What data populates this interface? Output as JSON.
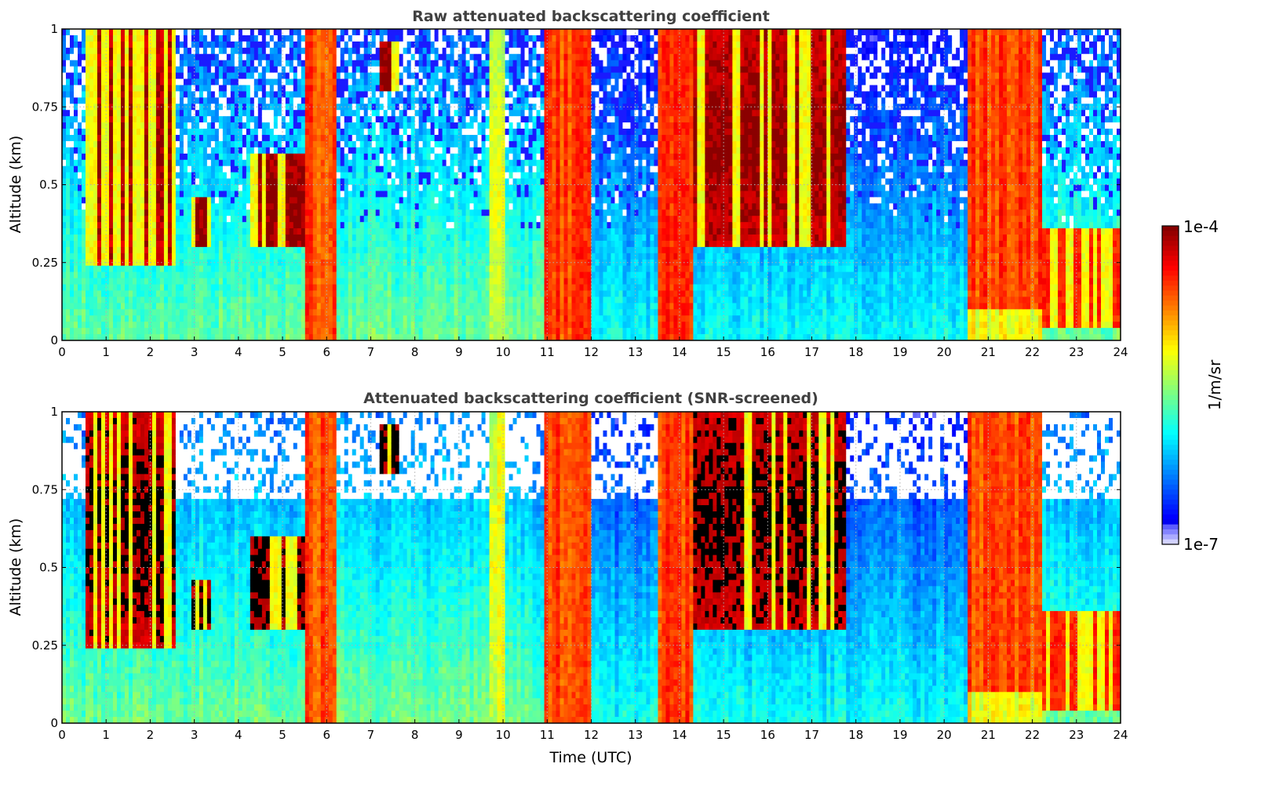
{
  "chart_data": [
    {
      "type": "heatmap",
      "title": "Raw attenuated backscattering coefficient",
      "xlabel": "",
      "ylabel": "Altitude (km)",
      "xlim": [
        0,
        24
      ],
      "ylim": [
        0,
        1
      ],
      "xticks": [
        "0",
        "1",
        "2",
        "3",
        "4",
        "5",
        "6",
        "7",
        "8",
        "9",
        "10",
        "11",
        "12",
        "13",
        "14",
        "15",
        "16",
        "17",
        "18",
        "19",
        "20",
        "21",
        "22",
        "23",
        "24"
      ],
      "yticks": [
        "0",
        "0.25",
        "0.5",
        "0.75",
        "1"
      ],
      "ytick_values": [
        0,
        0.25,
        0.5,
        0.75,
        1
      ],
      "grid": true,
      "screened": false,
      "features": [
        {
          "name": "boundary-layer-haze",
          "t_start": 0,
          "t_end": 24,
          "alt_top": 0.25,
          "level": "low"
        },
        {
          "name": "cloud-layer",
          "t_start": 0.5,
          "t_end": 2.6,
          "alt_bottom": 0.25,
          "alt_top": 1.0,
          "level": "high"
        },
        {
          "name": "cloud-layer",
          "t_start": 2.9,
          "t_end": 3.4,
          "alt_bottom": 0.3,
          "alt_top": 0.45,
          "level": "high"
        },
        {
          "name": "cloud-layer",
          "t_start": 4.3,
          "t_end": 5.5,
          "alt_bottom": 0.3,
          "alt_top": 0.6,
          "level": "high"
        },
        {
          "name": "fog-column",
          "t_start": 5.5,
          "t_end": 6.2,
          "alt_bottom": 0,
          "alt_top": 1.0,
          "level": "very-high"
        },
        {
          "name": "cloud-layer",
          "t_start": 7.2,
          "t_end": 7.6,
          "alt_bottom": 0.8,
          "alt_top": 0.95,
          "level": "high"
        },
        {
          "name": "precipitation",
          "t_start": 9.7,
          "t_end": 10.0,
          "alt_bottom": 0,
          "alt_top": 1.0,
          "level": "medium"
        },
        {
          "name": "fog-column",
          "t_start": 10.9,
          "t_end": 12.0,
          "alt_bottom": 0,
          "alt_top": 1.0,
          "level": "very-high"
        },
        {
          "name": "fog-column",
          "t_start": 13.5,
          "t_end": 14.3,
          "alt_bottom": 0,
          "alt_top": 1.0,
          "level": "very-high"
        },
        {
          "name": "cloud-layer",
          "t_start": 14.3,
          "t_end": 17.8,
          "alt_bottom": 0.3,
          "alt_top": 1.0,
          "level": "high"
        },
        {
          "name": "fog-column",
          "t_start": 20.5,
          "t_end": 22.2,
          "alt_bottom": 0,
          "alt_top": 1.0,
          "level": "very-high"
        },
        {
          "name": "cloud-layer",
          "t_start": 22.2,
          "t_end": 24,
          "alt_bottom": 0.05,
          "alt_top": 0.35,
          "level": "very-high"
        }
      ]
    },
    {
      "type": "heatmap",
      "title": "Attenuated backscattering coefficient (SNR-screened)",
      "xlabel": "Time (UTC)",
      "ylabel": "Altitude (km)",
      "xlim": [
        0,
        24
      ],
      "ylim": [
        0,
        1
      ],
      "xticks": [
        "0",
        "1",
        "2",
        "3",
        "4",
        "5",
        "6",
        "7",
        "8",
        "9",
        "10",
        "11",
        "12",
        "13",
        "14",
        "15",
        "16",
        "17",
        "18",
        "19",
        "20",
        "21",
        "22",
        "23",
        "24"
      ],
      "yticks": [
        "0",
        "0.25",
        "0.5",
        "0.75",
        "1"
      ],
      "ytick_values": [
        0,
        0.25,
        0.5,
        0.75,
        1
      ],
      "grid": true,
      "screened": true
    }
  ],
  "colorbar": {
    "label": "1/m/sr",
    "min_label": "1e-7",
    "max_label": "1e-4",
    "min": 1e-07,
    "max": 0.0001,
    "scale": "log",
    "colormap": "jet",
    "saturated_color": "#000000",
    "screened_color": "#ffffff"
  }
}
